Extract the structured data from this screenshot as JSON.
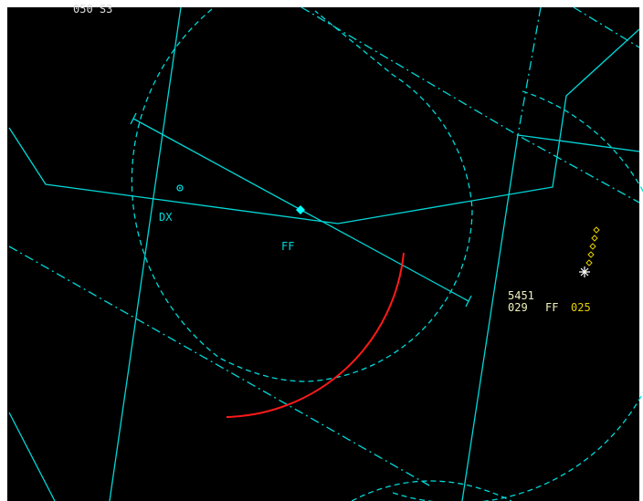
{
  "header_label": "050 S3",
  "labels": [
    {
      "text": "DX"
    },
    {
      "text": "FF"
    }
  ],
  "track": {
    "squawk": "5451",
    "altitude": "029",
    "sector": "FF",
    "cleared": "025"
  }
}
